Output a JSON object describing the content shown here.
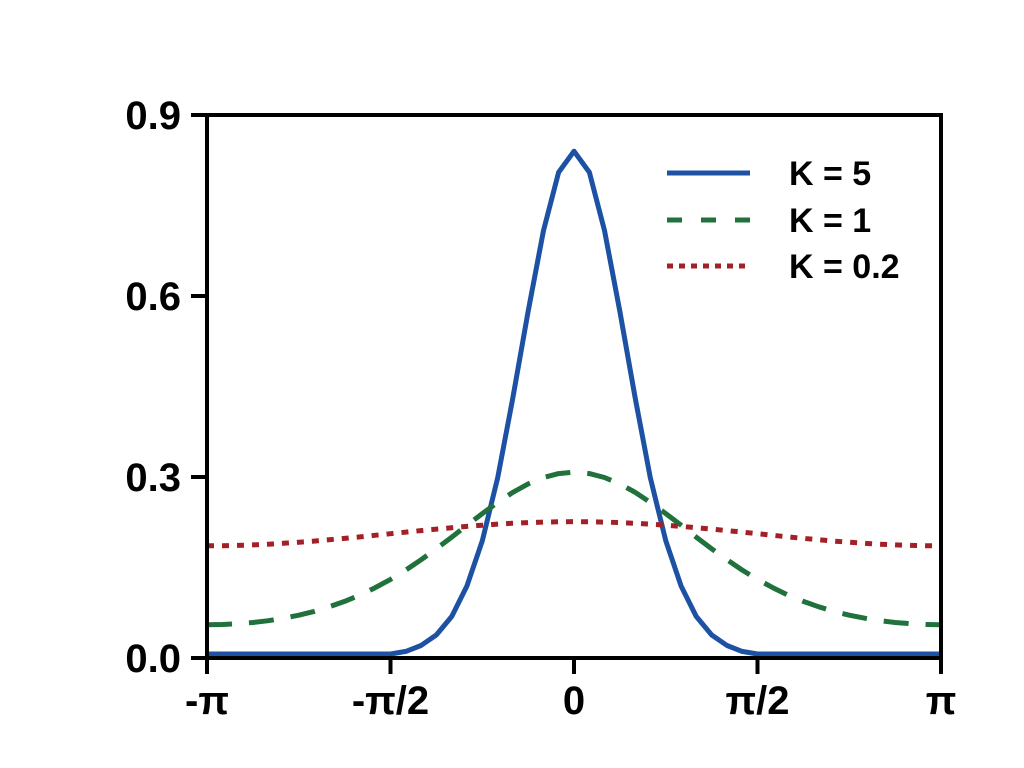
{
  "window": {
    "background": "#ffffff",
    "foreground": "#000000"
  },
  "chart_data": {
    "type": "line",
    "title": "",
    "xlabel": "",
    "ylabel": "",
    "x_unit": "radians, expressed as multiples of pi",
    "xlim_over_pi": [
      -1,
      1
    ],
    "ylim": [
      0,
      0.9
    ],
    "grid": false,
    "frame": "full box",
    "legend_position": "upper right",
    "legend_frame": false,
    "x_over_pi": [
      -1,
      -0.958,
      -0.917,
      -0.875,
      -0.833,
      -0.792,
      -0.75,
      -0.708,
      -0.667,
      -0.625,
      -0.583,
      -0.542,
      -0.5,
      -0.458,
      -0.417,
      -0.375,
      -0.333,
      -0.292,
      -0.25,
      -0.208,
      -0.167,
      -0.125,
      -0.083,
      -0.042,
      0,
      0.042,
      0.083,
      0.125,
      0.167,
      0.208,
      0.25,
      0.292,
      0.333,
      0.375,
      0.417,
      0.458,
      0.5,
      0.542,
      0.583,
      0.625,
      0.667,
      0.708,
      0.75,
      0.792,
      0.833,
      0.875,
      0.917,
      0.958,
      1
    ],
    "series": [
      {
        "name": "K = 5",
        "color": "#1d51a3",
        "line_style": "solid",
        "values": [
          0,
          0,
          0,
          0.0001,
          0.0001,
          0.0001,
          0.0002,
          0.0003,
          0.0005,
          0.0008,
          0.0016,
          0.003,
          0.0057,
          0.0109,
          0.0207,
          0.0383,
          0.069,
          0.1188,
          0.1942,
          0.2989,
          0.4299,
          0.5741,
          0.7085,
          0.8048,
          0.84,
          0.8048,
          0.7085,
          0.5741,
          0.4299,
          0.2989,
          0.1942,
          0.1188,
          0.069,
          0.0383,
          0.0207,
          0.0109,
          0.0057,
          0.003,
          0.0016,
          0.0008,
          0.0005,
          0.0003,
          0.0002,
          0.0001,
          0.0001,
          0.0001,
          0,
          0,
          0
        ]
      },
      {
        "name": "K = 1",
        "color": "#20713c",
        "line_style": "dashed",
        "values": [
          0.0552,
          0.0556,
          0.0568,
          0.0589,
          0.0619,
          0.0659,
          0.071,
          0.0772,
          0.0848,
          0.0938,
          0.1043,
          0.1165,
          0.1303,
          0.1458,
          0.1628,
          0.1811,
          0.2004,
          0.22,
          0.2394,
          0.2579,
          0.2745,
          0.2885,
          0.2991,
          0.3057,
          0.308,
          0.3057,
          0.2991,
          0.2885,
          0.2745,
          0.2579,
          0.2394,
          0.22,
          0.2004,
          0.1811,
          0.1628,
          0.1458,
          0.1303,
          0.1165,
          0.1043,
          0.0938,
          0.0848,
          0.0772,
          0.071,
          0.0659,
          0.0619,
          0.0589,
          0.0568,
          0.0556,
          0.0552
        ]
      },
      {
        "name": "K = 0.2",
        "color": "#a32126",
        "line_style": "dotted",
        "values": [
          0.186,
          0.1862,
          0.1867,
          0.1875,
          0.1887,
          0.1901,
          0.1919,
          0.1938,
          0.196,
          0.1983,
          0.2008,
          0.2034,
          0.206,
          0.2086,
          0.2112,
          0.2137,
          0.216,
          0.2182,
          0.2201,
          0.2219,
          0.2233,
          0.2245,
          0.2253,
          0.2258,
          0.226,
          0.2258,
          0.2253,
          0.2245,
          0.2233,
          0.2219,
          0.2201,
          0.2182,
          0.216,
          0.2137,
          0.2112,
          0.2086,
          0.206,
          0.2034,
          0.2008,
          0.1983,
          0.196,
          0.1938,
          0.1919,
          0.1901,
          0.1887,
          0.1875,
          0.1867,
          0.1862,
          0.186
        ]
      }
    ],
    "xticks": [
      {
        "x_over_pi": -1,
        "label": "-π"
      },
      {
        "x_over_pi": -0.5,
        "label": "-π/2"
      },
      {
        "x_over_pi": 0,
        "label": "0"
      },
      {
        "x_over_pi": 0.5,
        "label": "π/2"
      },
      {
        "x_over_pi": 1,
        "label": "π"
      }
    ],
    "yticks": [
      {
        "value": 0.0,
        "label": "0.0"
      },
      {
        "value": 0.3,
        "label": "0.3"
      },
      {
        "value": 0.6,
        "label": "0.6"
      },
      {
        "value": 0.9,
        "label": "0.9"
      }
    ]
  }
}
